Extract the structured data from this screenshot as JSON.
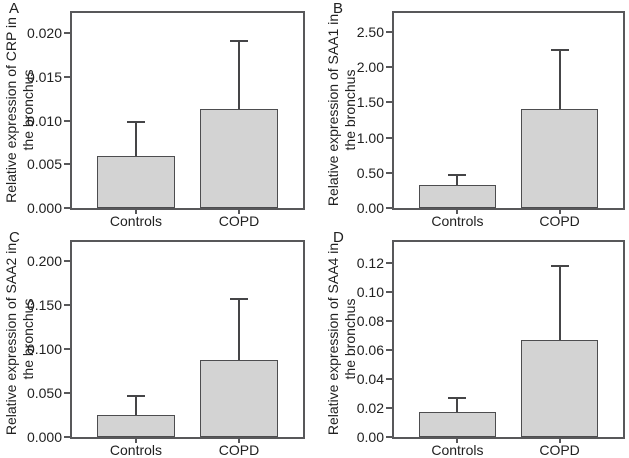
{
  "colors": {
    "background": "#ffffff",
    "bar_fill": "#d3d3d3",
    "bar_border": "#4d4d4f",
    "axis": "#58585a",
    "error_bar": "#454547",
    "text": "#212121"
  },
  "chart_data": [
    {
      "type": "bar",
      "panel_letter": "A",
      "ylabel": "Relative expression of CRP in the bronchus",
      "ylabel_lines": [
        "Relative expression of CRP in",
        "the bronchus"
      ],
      "xlabel": "",
      "categories": [
        "Controls",
        "COPD"
      ],
      "values": [
        0.006,
        0.0113
      ],
      "error_top": [
        0.0098,
        0.0191
      ],
      "ytick_values": [
        0,
        0.005,
        0.01,
        0.015,
        0.02
      ],
      "ytick_labels": [
        "0.000",
        "0.005",
        "0.010",
        "0.015",
        "0.020"
      ],
      "ylim": [
        0,
        0.0223
      ],
      "grid": false,
      "legend": null
    },
    {
      "type": "bar",
      "panel_letter": "B",
      "ylabel": "Relative expression of SAA1 in the bronchus",
      "ylabel_lines": [
        "Relative expression of SAA1 in",
        "the bronchus"
      ],
      "xlabel": "",
      "categories": [
        "Controls",
        "COPD"
      ],
      "values": [
        0.32,
        1.41
      ],
      "error_top": [
        0.47,
        2.24
      ],
      "ytick_values": [
        0,
        0.5,
        1.0,
        1.5,
        2.0,
        2.5
      ],
      "ytick_labels": [
        "0.00",
        "0.50",
        "1.00",
        "1.50",
        "2.00",
        "2.50"
      ],
      "ylim": [
        0,
        2.77
      ],
      "grid": false,
      "legend": null
    },
    {
      "type": "bar",
      "panel_letter": "C",
      "ylabel": "Relative expression of SAA2 in the bronchus",
      "ylabel_lines": [
        "Relative expression of SAA2 in",
        "the bronchus"
      ],
      "xlabel": "",
      "categories": [
        "Controls",
        "COPD"
      ],
      "values": [
        0.025,
        0.088
      ],
      "error_top": [
        0.047,
        0.157
      ],
      "ytick_values": [
        0,
        0.05,
        0.1,
        0.15,
        0.2
      ],
      "ytick_labels": [
        "0.000",
        "0.050",
        "0.100",
        "0.150",
        "0.200"
      ],
      "ylim": [
        0,
        0.2217
      ],
      "grid": false,
      "legend": null
    },
    {
      "type": "bar",
      "panel_letter": "D",
      "ylabel": "Relative expression of SAA4 in the bronchus",
      "ylabel_lines": [
        "Relative expression of SAA4 in",
        "the bronchus"
      ],
      "xlabel": "",
      "categories": [
        "Controls",
        "COPD"
      ],
      "values": [
        0.017,
        0.067
      ],
      "error_top": [
        0.027,
        0.118
      ],
      "ytick_values": [
        0,
        0.02,
        0.04,
        0.06,
        0.08,
        0.1,
        0.12
      ],
      "ytick_labels": [
        "0.00",
        "0.02",
        "0.04",
        "0.06",
        "0.08",
        "0.10",
        "0.12"
      ],
      "ylim": [
        0,
        0.1345
      ],
      "grid": false,
      "legend": null
    }
  ]
}
